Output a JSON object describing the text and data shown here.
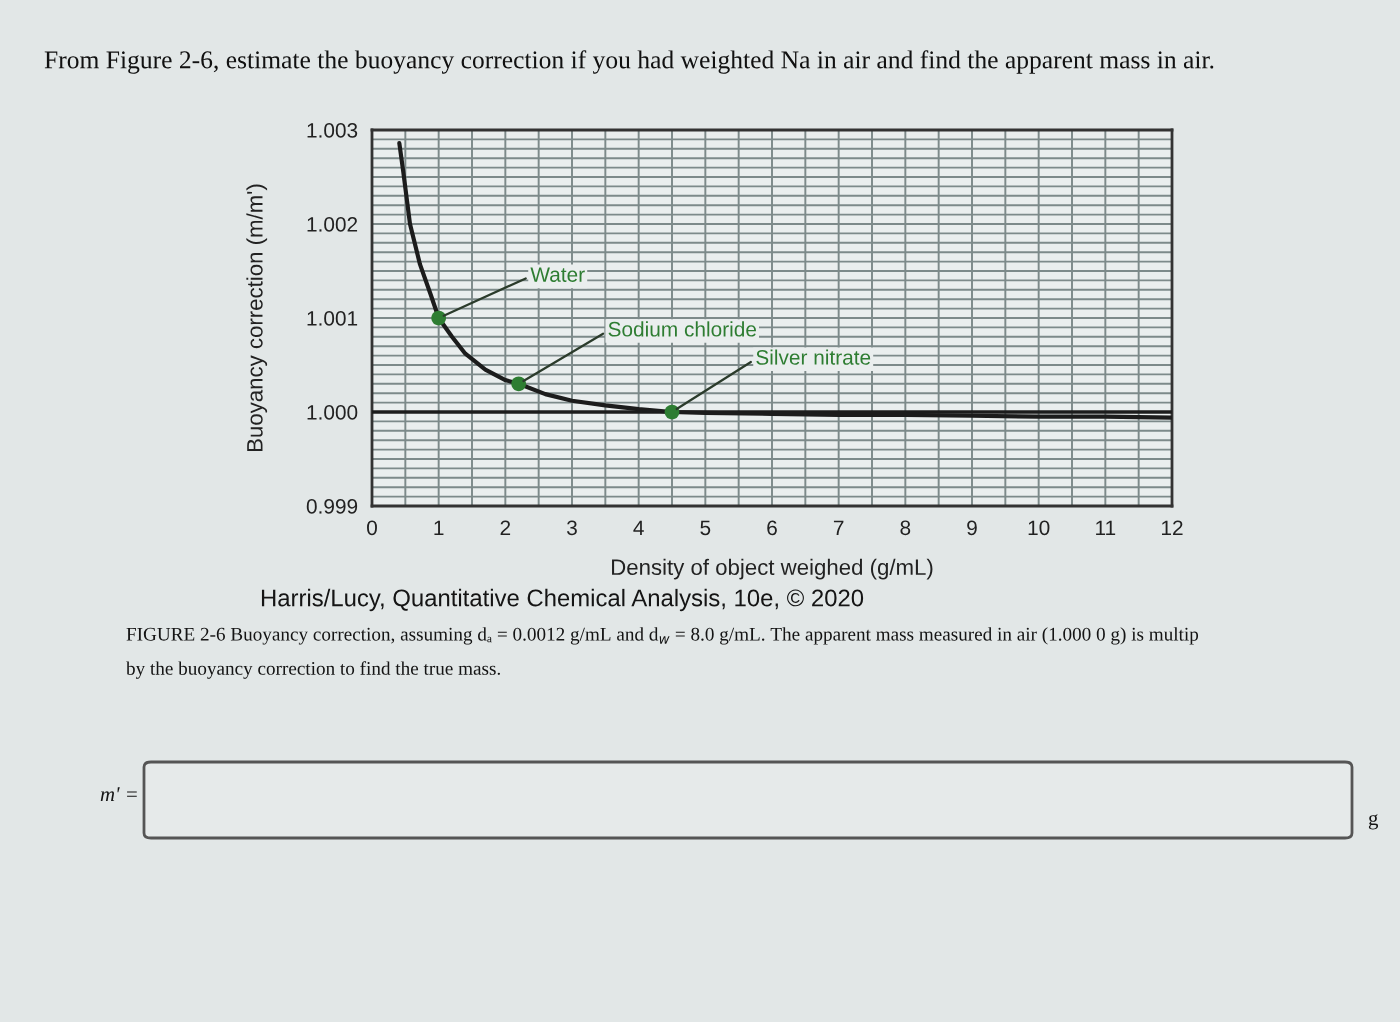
{
  "chart_data": {
    "type": "line",
    "title": "From Figure 2-6, estimate the buoyancy correction if you had weighted Na in air and find the apparent mass in air.",
    "xlabel": "Density of object weighed (g/mL)",
    "ylabel": "Buoyancy correction (m/m')",
    "xlim": [
      0,
      12
    ],
    "xticks": [
      0,
      1,
      2,
      3,
      4,
      5,
      6,
      7,
      8,
      9,
      10,
      11,
      12
    ],
    "ylim": [
      0.999,
      1.003
    ],
    "yticks": [
      0.999,
      {
        "value": 1.0,
        "label": "1.000"
      },
      1.001,
      1.002,
      1.003
    ],
    "grid": true,
    "ref_lines": [
      {
        "axis": "y",
        "value": 1.0,
        "color": "#1c1c1c"
      }
    ],
    "series": [
      {
        "color": "#1c1c1c",
        "x": [
          0.41,
          0.47,
          0.57,
          0.72,
          0.88,
          1.0,
          1.2,
          1.4,
          1.7,
          2.0,
          2.2,
          2.6,
          3.0,
          3.5,
          4.0,
          4.5,
          5,
          6,
          7,
          8,
          9,
          10,
          11,
          12
        ],
        "values": [
          1.00286,
          1.00255,
          1.002,
          1.00157,
          1.00125,
          1.001,
          1.0008,
          1.00062,
          1.00045,
          1.00034,
          1.0003,
          1.00019,
          1.00012,
          1.00007,
          1.00003,
          1.0,
          0.99999,
          0.99998,
          0.99997,
          0.99997,
          0.99996,
          0.99995,
          0.99995,
          0.99994
        ]
      },
      {
        "type": "scatter",
        "color": "#2e7d32",
        "marker": "circle",
        "x": [
          1.0,
          2.2,
          4.5
        ],
        "values": [
          1.001,
          1.0003,
          1.0
        ]
      }
    ],
    "annotations": [
      {
        "text": "Water",
        "x": 1.0,
        "y": 1.001
      },
      {
        "text": "Sodium chloride",
        "x": 2.2,
        "y": 1.0003
      },
      {
        "text": "Silver nitrate",
        "x": 4.5,
        "y": 1.0
      },
      "Harris/Lucy, Quantitative Chemical Analysis, 10e, © 2020",
      "FIGURE 2-6 Buoyancy correction, assuming dₐ = 0.0012 g/mL and d$_{w}$ = 8.0 g/mL. The apparent mass measured in air (1.000 0 g) is multip",
      "by the buoyancy correction to find the true mass.",
      "m' =",
      "g"
    ]
  }
}
